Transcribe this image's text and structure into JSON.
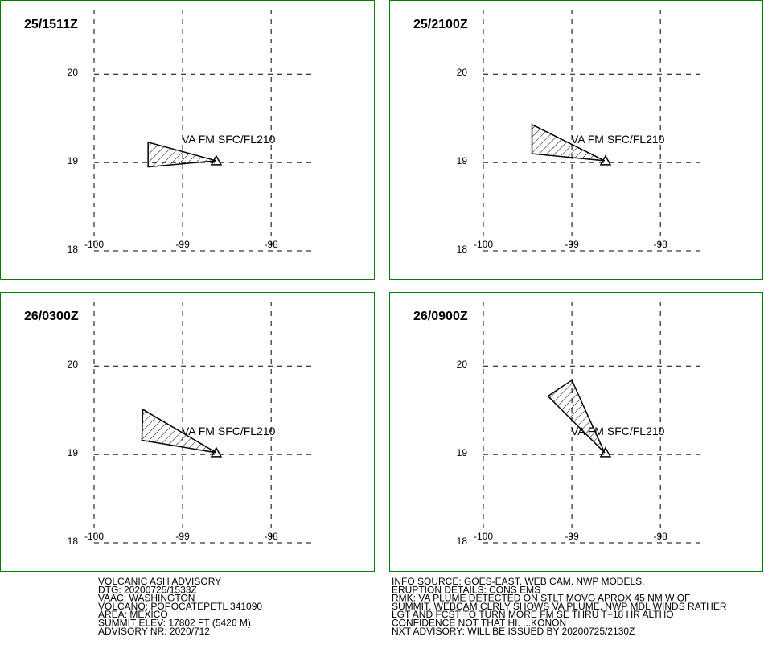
{
  "lon_lim": [
    -100,
    -97.52
  ],
  "lat_lim": [
    18,
    20.73
  ],
  "lon_ticks": [
    -100,
    -99,
    -98
  ],
  "lat_ticks": [
    18,
    19,
    20
  ],
  "volcano": [
    -98.62,
    19.02
  ],
  "panels": [
    {
      "time": "25/1511Z",
      "label": "VA FM SFC/FL210",
      "polygon": [
        [
          -99.39,
          19.23
        ],
        [
          -98.62,
          19.02
        ],
        [
          -99.39,
          18.95
        ]
      ]
    },
    {
      "time": "25/2100Z",
      "label": "VA FM SFC/FL210",
      "polygon": [
        [
          -99.45,
          19.43
        ],
        [
          -98.63,
          19.02
        ],
        [
          -99.45,
          19.1
        ]
      ]
    },
    {
      "time": "26/0300Z",
      "label": "VA FM SFC/FL210",
      "polygon": [
        [
          -99.45,
          19.51
        ],
        [
          -98.62,
          19.02
        ],
        [
          -99.46,
          19.16
        ]
      ]
    },
    {
      "time": "26/0900Z",
      "label": "VA FM SFC/FL210",
      "polygon": [
        [
          -99.27,
          19.66
        ],
        [
          -99.0,
          19.84
        ],
        [
          -98.63,
          19.02
        ]
      ]
    }
  ],
  "left_text": [
    "VOLCANIC ASH ADVISORY",
    "DTG: 20200725/1533Z",
    "VAAC: WASHINGTON",
    "VOLCANO: POPOCATEPETL 341090",
    "AREA: MEXICO",
    "SUMMIT ELEV: 17802 FT (5426 M)",
    "ADVISORY NR: 2020/712"
  ],
  "right_text": [
    "INFO SOURCE: GOES-EAST. WEB CAM. NWP MODELS.",
    "ERUPTION DETAILS: CONS EMS",
    "RMK: VA PLUME DETECTED ON STLT MOVG APROX 45 NM W OF",
    "SUMMIT. WEBCAM CLRLY SHOWS VA PLUME. NWP MDL WINDS RATHER",
    "LGT AND FCST TO TURN MORE FM SE THRU T+18 HR ALTHO",
    "CONFIDENCE NOT THAT HI. ...KONON",
    "NXT ADVISORY: WILL BE ISSUED BY 20200725/2130Z"
  ]
}
